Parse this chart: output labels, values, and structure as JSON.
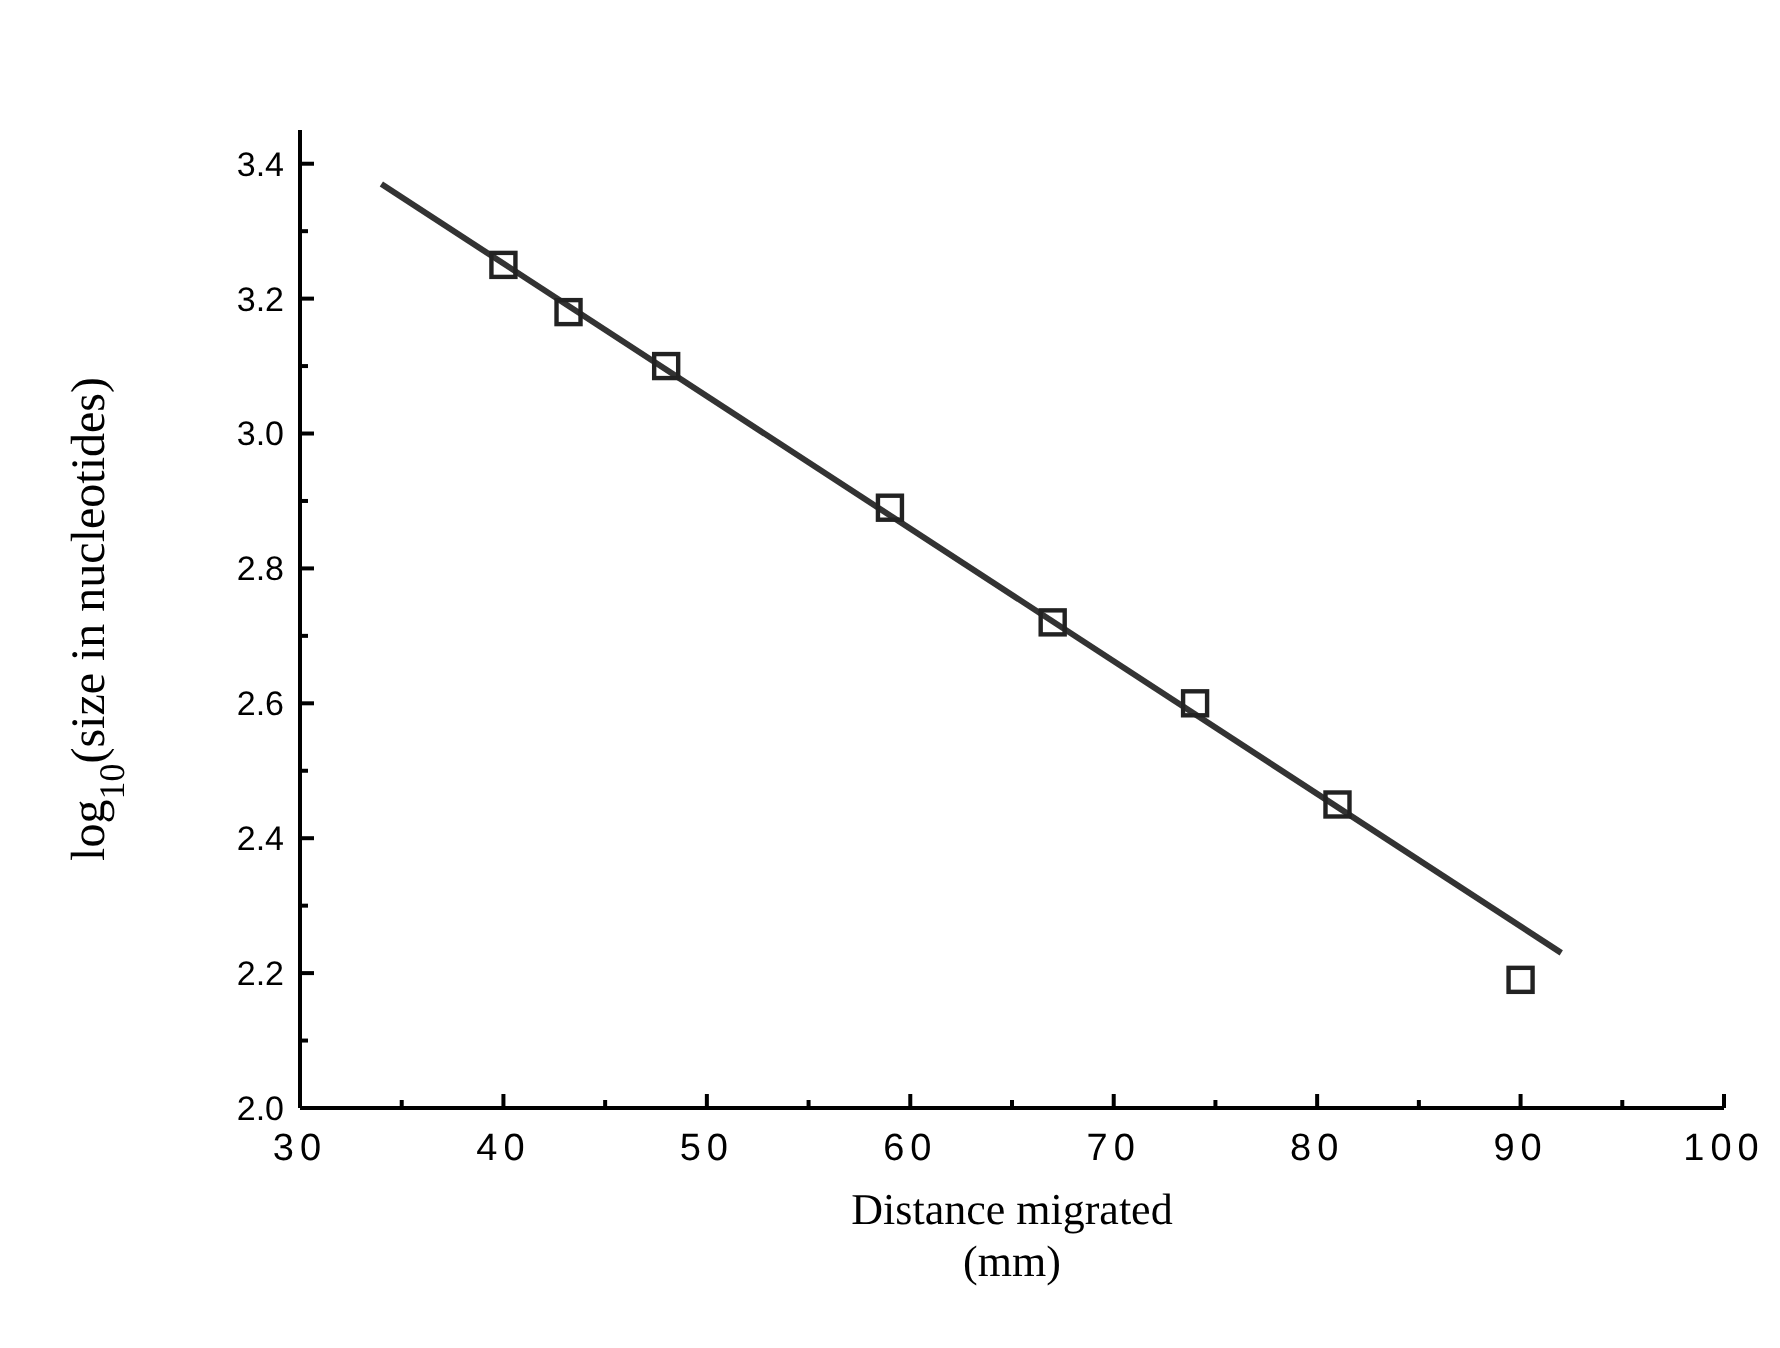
{
  "chart_data": {
    "type": "scatter",
    "xlabel": "Distance migrated\n(mm)",
    "ylabel": "log$_{10}$(size in nucleotides)",
    "xlim": [
      30,
      100
    ],
    "ylim": [
      2.0,
      3.45
    ],
    "xticks": [
      30,
      {
        "value": 35,
        "label": null
      },
      40,
      {
        "value": 45,
        "label": null
      },
      50,
      {
        "value": 55,
        "label": null
      },
      60,
      {
        "value": 65,
        "label": null
      },
      70,
      {
        "value": 75,
        "label": null
      },
      80,
      {
        "value": 85,
        "label": null
      },
      90,
      {
        "value": 95,
        "label": null
      },
      100
    ],
    "yticks": [
      {
        "value": 2.0,
        "label": "2.0"
      },
      {
        "value": 2.1,
        "label": null
      },
      {
        "value": 2.2,
        "label": "2.2"
      },
      {
        "value": 2.3,
        "label": null
      },
      {
        "value": 2.4,
        "label": "2.4"
      },
      {
        "value": 2.5,
        "label": null
      },
      {
        "value": 2.6,
        "label": "2.6"
      },
      {
        "value": 2.7,
        "label": null
      },
      {
        "value": 2.8,
        "label": "2.8"
      },
      {
        "value": 2.9,
        "label": null
      },
      {
        "value": 3.0,
        "label": "3.0"
      },
      {
        "value": 3.1,
        "label": null
      },
      {
        "value": 3.2,
        "label": "3.2"
      },
      {
        "value": 3.3,
        "label": null
      },
      {
        "value": 3.4,
        "label": "3.4"
      }
    ],
    "grid": false,
    "series": [
      {
        "type": "line",
        "marker": "none",
        "color": "#333333",
        "x": [
          34,
          92
        ],
        "values": [
          3.37,
          2.23
        ]
      },
      {
        "marker": "square",
        "color": "#222222",
        "x": [
          40,
          43.2,
          48,
          59,
          67,
          74,
          81,
          90
        ],
        "values": [
          3.25,
          3.18,
          3.1,
          2.89,
          2.72,
          2.6,
          2.45,
          2.19
        ]
      }
    ]
  }
}
